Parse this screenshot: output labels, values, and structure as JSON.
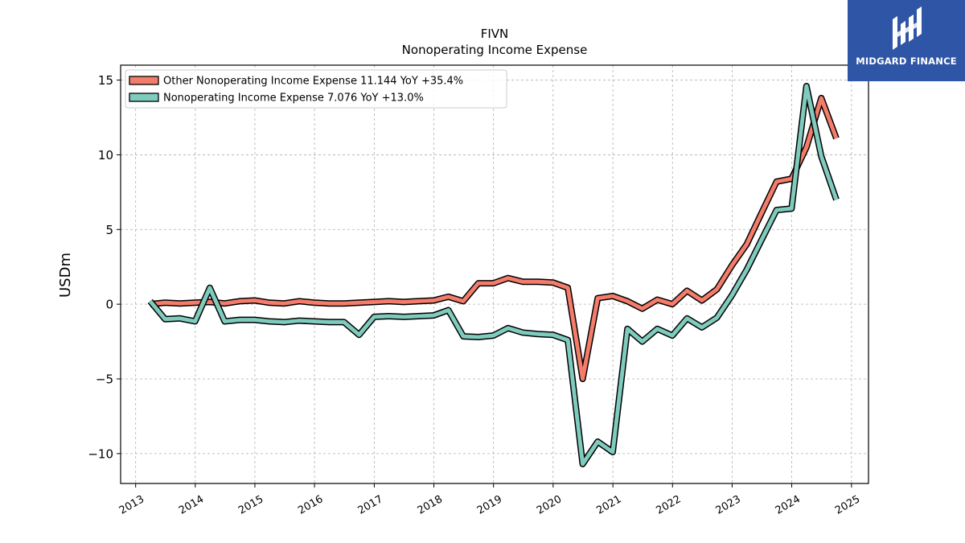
{
  "header": {
    "ticker": "FIVN",
    "subtitle": "Nonoperating Income Expense"
  },
  "brand": {
    "name": "MIDGARD FINANCE",
    "logo_icon": "midgard-logo-icon",
    "color": "#2f56a6"
  },
  "chart_data": {
    "type": "line",
    "title": "FIVN",
    "subtitle": "Nonoperating Income Expense",
    "ylabel": "USDm",
    "xlabel": "",
    "ylim": [
      -12,
      16
    ],
    "xlim": [
      "2012-10-01",
      "2025-04-15"
    ],
    "x_tick_labels": [
      "2013",
      "2014",
      "2015",
      "2016",
      "2017",
      "2018",
      "2019",
      "2020",
      "2021",
      "2022",
      "2023",
      "2024",
      "2025"
    ],
    "y_ticks": [
      -10,
      -5,
      0,
      5,
      10,
      15
    ],
    "y_tick_labels": [
      "−10",
      "−5",
      "0",
      "5",
      "10",
      "15"
    ],
    "grid": true,
    "legend_position": "top-left",
    "series": [
      {
        "name": "Other Nonoperating Income Expense",
        "legend_label": "Other Nonoperating Income Expense  11.144 YoY +35.4%",
        "color": "#f47c6b",
        "points": [
          [
            "2013-03-31",
            0.0
          ],
          [
            "2013-06-30",
            0.1
          ],
          [
            "2013-09-30",
            0.05
          ],
          [
            "2013-12-31",
            0.1
          ],
          [
            "2014-03-31",
            0.15
          ],
          [
            "2014-06-30",
            0.05
          ],
          [
            "2014-09-30",
            0.2
          ],
          [
            "2014-12-31",
            0.25
          ],
          [
            "2015-03-31",
            0.1
          ],
          [
            "2015-06-30",
            0.05
          ],
          [
            "2015-09-30",
            0.2
          ],
          [
            "2015-12-31",
            0.1
          ],
          [
            "2016-03-31",
            0.05
          ],
          [
            "2016-06-30",
            0.05
          ],
          [
            "2016-09-30",
            0.1
          ],
          [
            "2016-12-31",
            0.15
          ],
          [
            "2017-03-31",
            0.2
          ],
          [
            "2017-06-30",
            0.15
          ],
          [
            "2017-09-30",
            0.2
          ],
          [
            "2017-12-31",
            0.25
          ],
          [
            "2018-03-31",
            0.5
          ],
          [
            "2018-06-30",
            0.2
          ],
          [
            "2018-09-30",
            1.4
          ],
          [
            "2018-12-31",
            1.4
          ],
          [
            "2019-03-31",
            1.75
          ],
          [
            "2019-06-30",
            1.5
          ],
          [
            "2019-09-30",
            1.5
          ],
          [
            "2019-12-31",
            1.45
          ],
          [
            "2020-03-31",
            1.1
          ],
          [
            "2020-06-30",
            -5.0
          ],
          [
            "2020-09-30",
            0.4
          ],
          [
            "2020-12-31",
            0.55
          ],
          [
            "2021-03-31",
            0.2
          ],
          [
            "2021-06-30",
            -0.3
          ],
          [
            "2021-09-30",
            0.3
          ],
          [
            "2021-12-31",
            0.0
          ],
          [
            "2022-03-31",
            0.9
          ],
          [
            "2022-06-30",
            0.25
          ],
          [
            "2022-09-30",
            1.0
          ],
          [
            "2022-12-31",
            2.6
          ],
          [
            "2023-03-31",
            4.0
          ],
          [
            "2023-06-30",
            6.1
          ],
          [
            "2023-09-30",
            8.2
          ],
          [
            "2023-12-31",
            8.4
          ],
          [
            "2024-03-31",
            10.5
          ],
          [
            "2024-06-30",
            13.8
          ],
          [
            "2024-09-30",
            11.1
          ]
        ]
      },
      {
        "name": "Nonoperating Income Expense",
        "legend_label": "Nonoperating Income Expense  7.076 YoY +13.0%",
        "color": "#7fcbbd",
        "points": [
          [
            "2013-03-31",
            0.2
          ],
          [
            "2013-06-30",
            -1.0
          ],
          [
            "2013-09-30",
            -0.95
          ],
          [
            "2013-12-31",
            -1.15
          ],
          [
            "2014-03-31",
            1.1
          ],
          [
            "2014-06-30",
            -1.15
          ],
          [
            "2014-09-30",
            -1.05
          ],
          [
            "2014-12-31",
            -1.05
          ],
          [
            "2015-03-31",
            -1.15
          ],
          [
            "2015-06-30",
            -1.2
          ],
          [
            "2015-09-30",
            -1.1
          ],
          [
            "2015-12-31",
            -1.15
          ],
          [
            "2016-03-31",
            -1.2
          ],
          [
            "2016-06-30",
            -1.2
          ],
          [
            "2016-09-30",
            -2.05
          ],
          [
            "2016-12-31",
            -0.85
          ],
          [
            "2017-03-31",
            -0.8
          ],
          [
            "2017-06-30",
            -0.85
          ],
          [
            "2017-09-30",
            -0.8
          ],
          [
            "2017-12-31",
            -0.75
          ],
          [
            "2018-03-31",
            -0.4
          ],
          [
            "2018-06-30",
            -2.15
          ],
          [
            "2018-09-30",
            -2.2
          ],
          [
            "2018-12-31",
            -2.1
          ],
          [
            "2019-03-31",
            -1.6
          ],
          [
            "2019-06-30",
            -1.9
          ],
          [
            "2019-09-30",
            -2.0
          ],
          [
            "2019-12-31",
            -2.05
          ],
          [
            "2020-03-31",
            -2.4
          ],
          [
            "2020-06-30",
            -10.7
          ],
          [
            "2020-09-30",
            -9.2
          ],
          [
            "2020-12-31",
            -9.9
          ],
          [
            "2021-03-31",
            -1.65
          ],
          [
            "2021-06-30",
            -2.5
          ],
          [
            "2021-09-30",
            -1.65
          ],
          [
            "2021-12-31",
            -2.1
          ],
          [
            "2022-03-31",
            -0.95
          ],
          [
            "2022-06-30",
            -1.55
          ],
          [
            "2022-09-30",
            -0.9
          ],
          [
            "2022-12-31",
            0.6
          ],
          [
            "2023-03-31",
            2.3
          ],
          [
            "2023-06-30",
            4.3
          ],
          [
            "2023-09-30",
            6.3
          ],
          [
            "2023-12-31",
            6.4
          ],
          [
            "2024-03-31",
            14.6
          ],
          [
            "2024-06-30",
            9.9
          ],
          [
            "2024-09-30",
            7.0
          ]
        ]
      }
    ]
  }
}
